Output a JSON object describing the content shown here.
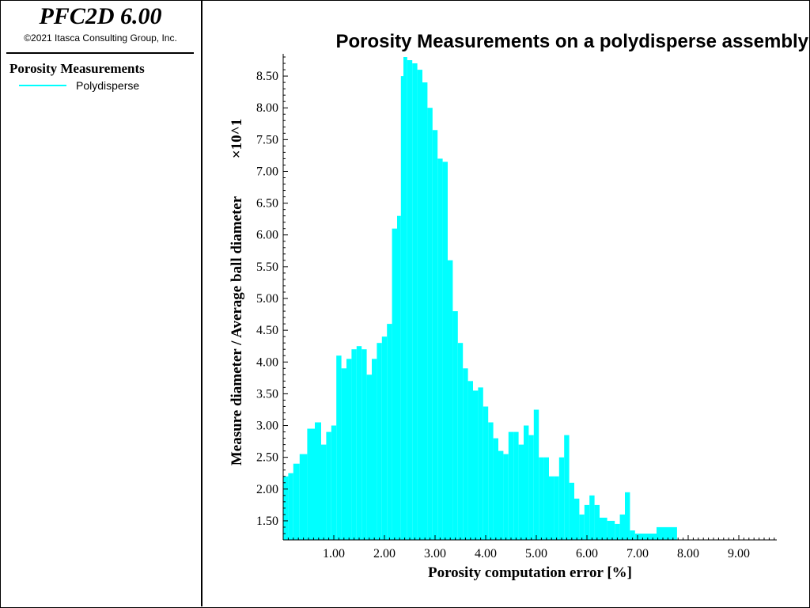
{
  "app": {
    "title": "PFC2D 6.00",
    "copyright": "©2021 Itasca Consulting Group, Inc."
  },
  "legend": {
    "heading": "Porosity Measurements",
    "items": [
      {
        "label": "Polydisperse",
        "color": "#00ffff"
      }
    ]
  },
  "chart_data": {
    "type": "bar",
    "title": "Porosity Measurements on a polydisperse assembly",
    "xlabel": "Porosity computation error [%]",
    "ylabel": "Measure diameter / Average ball diameter",
    "y_multiplier_label": "×10^1",
    "xlim": [
      0.0,
      9.75
    ],
    "ylim": [
      1.2,
      8.85
    ],
    "x_ticks": [
      "1.00",
      "2.00",
      "3.00",
      "4.00",
      "5.00",
      "6.00",
      "7.00",
      "8.00",
      "9.00"
    ],
    "x_tick_values": [
      1,
      2,
      3,
      4,
      5,
      6,
      7,
      8,
      9
    ],
    "y_ticks": [
      "1.50",
      "2.00",
      "2.50",
      "3.00",
      "3.50",
      "4.00",
      "4.50",
      "5.00",
      "5.50",
      "6.00",
      "6.50",
      "7.00",
      "7.50",
      "8.00",
      "8.50"
    ],
    "y_tick_values": [
      1.5,
      2.0,
      2.5,
      3.0,
      3.5,
      4.0,
      4.5,
      5.0,
      5.5,
      6.0,
      6.5,
      7.0,
      7.5,
      8.0,
      8.5
    ],
    "grid": false,
    "series": [
      {
        "name": "Polydisperse",
        "color": "#00ffff",
        "x": [
          0.05,
          0.15,
          0.25,
          0.4,
          0.55,
          0.7,
          0.8,
          0.9,
          1.0,
          1.1,
          1.2,
          1.3,
          1.4,
          1.5,
          1.6,
          1.7,
          1.8,
          1.9,
          2.0,
          2.1,
          2.2,
          2.3,
          2.35,
          2.4,
          2.5,
          2.6,
          2.7,
          2.8,
          2.9,
          3.0,
          3.1,
          3.2,
          3.3,
          3.4,
          3.5,
          3.6,
          3.7,
          3.8,
          3.9,
          4.0,
          4.1,
          4.2,
          4.3,
          4.4,
          4.5,
          4.6,
          4.7,
          4.8,
          4.9,
          5.0,
          5.1,
          5.2,
          5.3,
          5.4,
          5.5,
          5.6,
          5.7,
          5.8,
          5.9,
          6.0,
          6.1,
          6.2,
          6.3,
          6.5,
          6.6,
          6.7,
          6.8,
          6.9,
          7.0,
          7.75
        ],
        "y": [
          2.2,
          2.25,
          2.4,
          2.55,
          2.95,
          3.05,
          2.7,
          2.9,
          3.0,
          4.1,
          3.9,
          4.05,
          4.2,
          4.25,
          4.2,
          3.8,
          4.05,
          4.3,
          4.4,
          4.6,
          6.1,
          6.3,
          8.5,
          8.8,
          8.75,
          8.7,
          8.6,
          8.4,
          8.0,
          7.65,
          7.2,
          7.15,
          5.6,
          4.8,
          4.3,
          3.9,
          3.7,
          3.55,
          3.6,
          3.3,
          3.05,
          2.8,
          2.6,
          2.55,
          2.9,
          2.9,
          2.7,
          3.0,
          2.85,
          3.25,
          2.5,
          2.5,
          2.2,
          2.2,
          2.5,
          2.85,
          2.1,
          1.85,
          1.6,
          1.75,
          1.9,
          1.75,
          1.55,
          1.5,
          1.45,
          1.6,
          1.95,
          1.35,
          1.3,
          1.4
        ]
      }
    ]
  }
}
